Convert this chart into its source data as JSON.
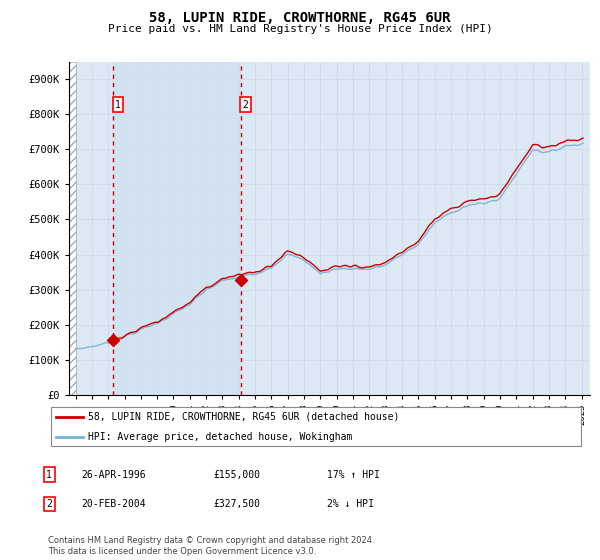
{
  "title": "58, LUPIN RIDE, CROWTHORNE, RG45 6UR",
  "subtitle": "Price paid vs. HM Land Registry's House Price Index (HPI)",
  "legend_line1": "58, LUPIN RIDE, CROWTHORNE, RG45 6UR (detached house)",
  "legend_line2": "HPI: Average price, detached house, Wokingham",
  "footnote": "Contains HM Land Registry data © Crown copyright and database right 2024.\nThis data is licensed under the Open Government Licence v3.0.",
  "table_rows": [
    {
      "num": "1",
      "date": "26-APR-1996",
      "price": "£155,000",
      "hpi": "17% ↑ HPI"
    },
    {
      "num": "2",
      "date": "20-FEB-2004",
      "price": "£327,500",
      "hpi": "2% ↓ HPI"
    }
  ],
  "purchase1_year": 1996.32,
  "purchase1_price": 155000,
  "purchase2_year": 2004.13,
  "purchase2_price": 327500,
  "ylim": [
    0,
    950000
  ],
  "xlim_left": 1993.6,
  "xlim_right": 2025.5,
  "hpi_color": "#7ab0d4",
  "price_paid_color": "#cc0000",
  "vline_color": "#cc0000",
  "grid_color": "#d0d8e8",
  "bg_color": "#dce8f4",
  "shade_between_color": "#dce8f8",
  "yticks": [
    0,
    100000,
    200000,
    300000,
    400000,
    500000,
    600000,
    700000,
    800000,
    900000
  ],
  "ytick_labels": [
    "£0",
    "£100K",
    "£200K",
    "£300K",
    "£400K",
    "£500K",
    "£600K",
    "£700K",
    "£800K",
    "£900K"
  ],
  "xtick_years": [
    1994,
    1995,
    1996,
    1997,
    1998,
    1999,
    2000,
    2001,
    2002,
    2003,
    2004,
    2005,
    2006,
    2007,
    2008,
    2009,
    2010,
    2011,
    2012,
    2013,
    2014,
    2015,
    2016,
    2017,
    2018,
    2019,
    2020,
    2021,
    2022,
    2023,
    2024,
    2025
  ]
}
